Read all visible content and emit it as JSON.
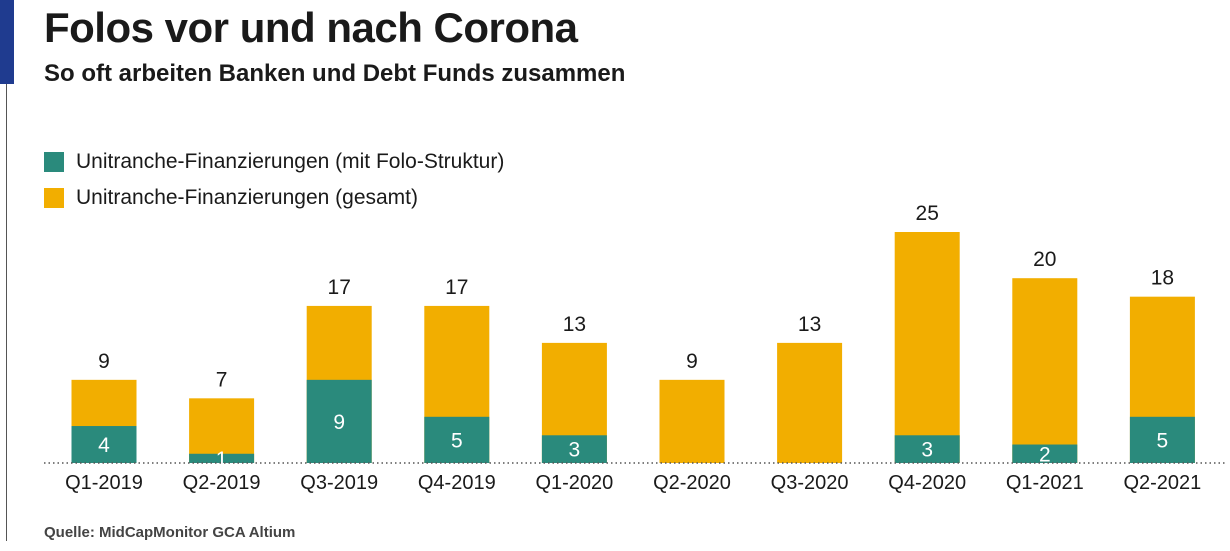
{
  "header": {
    "title": "Folos vor und nach Corona",
    "subtitle": "So oft arbeiten Banken und Debt Funds zusammen"
  },
  "source": "Quelle: MidCapMonitor GCA Altium",
  "colors": {
    "accent": "#1f3b8f",
    "folo": "#2a8a7c",
    "total": "#f2ae00"
  },
  "chart_data": {
    "type": "bar",
    "stacked": "overlay",
    "categories": [
      "Q1-2019",
      "Q2-2019",
      "Q3-2019",
      "Q4-2019",
      "Q1-2020",
      "Q2-2020",
      "Q3-2020",
      "Q4-2020",
      "Q1-2021",
      "Q2-2021"
    ],
    "series": [
      {
        "name": "Unitranche-Finanzierungen (mit Folo-Struktur)",
        "color": "#2a8a7c",
        "values": [
          4,
          1,
          9,
          5,
          3,
          0,
          0,
          3,
          2,
          5
        ]
      },
      {
        "name": "Unitranche-Finanzierungen (gesamt)",
        "color": "#f2ae00",
        "values": [
          9,
          7,
          17,
          17,
          13,
          9,
          13,
          25,
          20,
          18
        ]
      }
    ],
    "ylim": [
      0,
      25
    ],
    "grid": false,
    "legend": "top-left"
  }
}
